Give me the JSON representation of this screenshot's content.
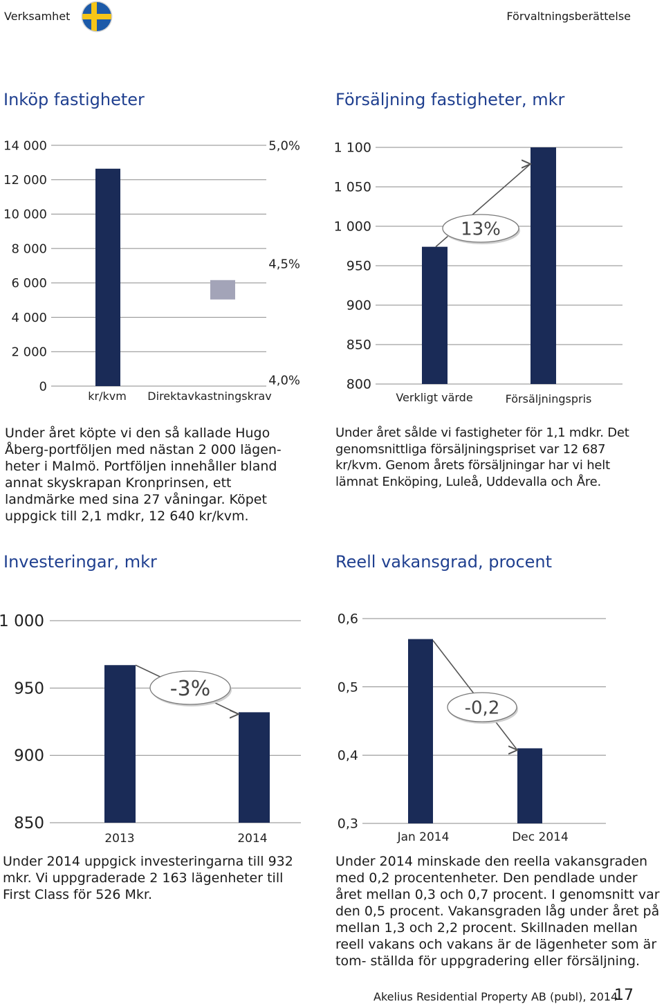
{
  "header": {
    "left": "Verksamhet",
    "right": "Förvaltningsberättelse"
  },
  "panels": {
    "inkop": {
      "title": "Inköp fastigheter",
      "text": "Under året köpte vi den så kallade Hugo Åberg-portföljen med nästan 2 000 lägen- heter i Malmö. Portföljen innehåller bland annat skyskrapan Kronprinsen, ett landmärke med sina 27 våningar. Köpet uppgick till 2,1 mdkr, 12 640 kr/kvm."
    },
    "forsaljning": {
      "title": "Försäljning fastigheter, mkr",
      "callout": "13%",
      "text": "Under året sålde vi fastigheter för 1,1 mdkr. Det genomsnittliga försäljningspriset var 12 687 kr/kvm. Genom årets försäljningar har vi helt lämnat Enköping, Luleå, Uddevalla och Åre."
    },
    "investeringar": {
      "title": "Investeringar, mkr",
      "callout": "-3%",
      "text": "Under 2014 uppgick investeringarna till 932 mkr. Vi uppgraderade 2 163 lägenheter till First Class för 526 Mkr."
    },
    "vakans": {
      "title": "Reell vakansgrad, procent",
      "callout": "-0,2",
      "text": "Under 2014 minskade den reella vakansgraden med 0,2 procentenheter. Den pendlade under året mellan 0,3 och 0,7 procent. I genomsnitt var den 0,5 procent. Vakansgraden låg under året på mellan 1,3 och 2,2 procent. Skillnaden mellan reell vakans och vakans är de lägenheter som är tom- ställda för uppgradering eller försäljning."
    }
  },
  "footer": {
    "company": "Akelius Residential Property AB (publ), 2014",
    "page": "17"
  },
  "colors": {
    "bar": "#1a2b57",
    "bar_light": "#a3a4b8",
    "title": "#1f3f8f",
    "grid": "#8a8a8a"
  },
  "chart_data": [
    {
      "type": "bar",
      "title": "Inköp fastigheter",
      "categories": [
        "kr/kvm",
        "Direktavkastningskrav"
      ],
      "series": [
        {
          "axis": "left",
          "values": [
            12640,
            null
          ]
        },
        {
          "axis": "right",
          "values": [
            null,
            4.4
          ]
        }
      ],
      "yticks": [
        "0",
        "2 000",
        "4 000",
        "6 000",
        "8 000",
        "10 000",
        "12 000",
        "14 000"
      ],
      "ylim": [
        0,
        14000
      ],
      "y2ticks": [
        "4,0%",
        "4,5%",
        "5,0%"
      ],
      "y2lim": [
        4.0,
        5.0
      ],
      "colors": [
        "#1a2b57",
        "#a3a4b8"
      ]
    },
    {
      "type": "bar",
      "title": "Försäljning fastigheter, mkr",
      "categories": [
        "Verkligt värde",
        "Försäljningspris"
      ],
      "values": [
        974,
        1100
      ],
      "yticks": [
        "800",
        "850",
        "900",
        "950",
        "1 000",
        "1 050",
        "1 100"
      ],
      "ylim": [
        800,
        1100
      ],
      "annotation": "13%"
    },
    {
      "type": "bar",
      "title": "Investeringar, mkr",
      "categories": [
        "2013",
        "2014"
      ],
      "values": [
        967,
        932
      ],
      "yticks": [
        "850",
        "900",
        "950",
        "1 000"
      ],
      "ylim": [
        850,
        1000
      ],
      "annotation": "-3%"
    },
    {
      "type": "bar",
      "title": "Reell vakansgrad, procent",
      "categories": [
        "Jan 2014",
        "Dec 2014"
      ],
      "values": [
        0.57,
        0.41
      ],
      "yticks": [
        "0,3",
        "0,4",
        "0,5",
        "0,6"
      ],
      "ylim": [
        0.3,
        0.6
      ],
      "annotation": "-0,2"
    }
  ]
}
